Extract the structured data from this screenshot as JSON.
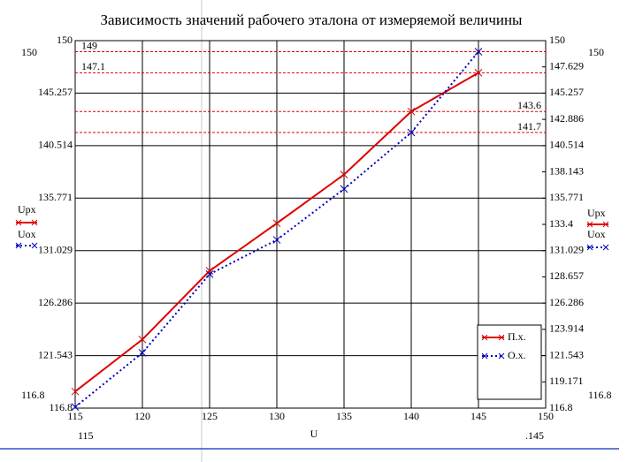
{
  "chart_data": {
    "type": "line",
    "title": "Зависимость значений рабочего эталона от измеряемой величины",
    "xlabel": "U",
    "x": [
      115,
      120,
      125,
      130,
      135,
      140,
      145
    ],
    "series": [
      {
        "name": "П.х.",
        "color": "#e00000",
        "style": "solid",
        "values": [
          118.3,
          123.0,
          129.2,
          133.5,
          137.9,
          143.6,
          147.1
        ]
      },
      {
        "name": "О.х.",
        "color": "#0000c0",
        "style": "dotted",
        "values": [
          116.9,
          121.8,
          128.9,
          132.0,
          136.6,
          141.7,
          149
        ]
      }
    ],
    "xlim": [
      115,
      150
    ],
    "xticks": [
      115,
      120,
      125,
      130,
      135,
      140,
      145,
      150
    ],
    "ylim": [
      116.8,
      150
    ],
    "yticks": [
      116.8,
      121.543,
      126.286,
      131.029,
      135.771,
      140.514,
      145.257,
      150
    ],
    "y2lim": [
      116.8,
      150
    ],
    "y2ticks": [
      116.8,
      119.171,
      121.543,
      123.914,
      126.286,
      128.657,
      131.029,
      133.4,
      135.771,
      138.143,
      140.514,
      142.886,
      145.257,
      147.629,
      150
    ],
    "reference_lines": [
      149,
      147.1,
      143.6,
      141.7
    ],
    "reference_color": "#e00000",
    "grid": true,
    "y_range_labels": [
      "150",
      "116.8"
    ],
    "x_range_labels": [
      "115",
      ".145"
    ],
    "ylabels": [
      "Upx",
      "Uox"
    ]
  }
}
